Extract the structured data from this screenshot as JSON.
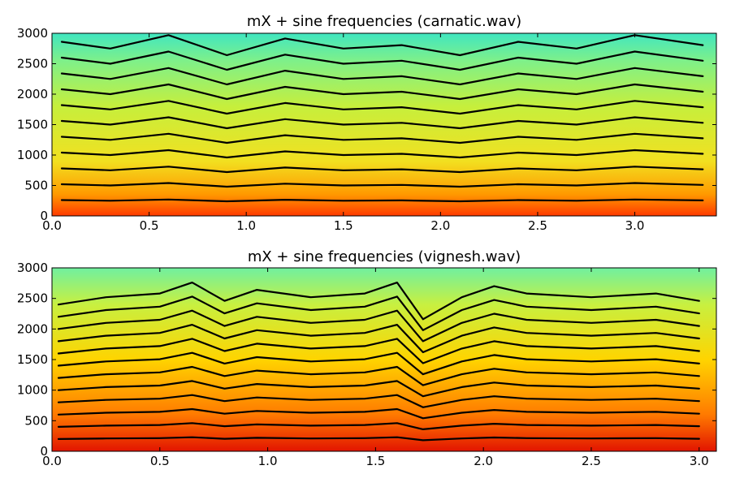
{
  "chart_data": [
    {
      "type": "heatmap",
      "title": "mX + sine frequencies (carnatic.wav)",
      "xlim": [
        0.0,
        3.42
      ],
      "ylim": [
        0,
        3000
      ],
      "x_ticks": [
        "0.0",
        "0.5",
        "1.0",
        "1.5",
        "2.0",
        "2.5",
        "3.0"
      ],
      "x_tick_values": [
        0.0,
        0.5,
        1.0,
        1.5,
        2.0,
        2.5,
        3.0
      ],
      "y_ticks": [
        "0",
        "500",
        "1000",
        "1500",
        "2000",
        "2500",
        "3000"
      ],
      "y_tick_values": [
        0,
        500,
        1000,
        1500,
        2000,
        2500,
        3000
      ],
      "colormap": "jet",
      "track_color": "#000000",
      "sine_frequencies": [
        {
          "x": [
            0.05,
            0.3,
            0.6,
            0.9,
            1.2,
            1.5,
            1.8,
            2.1,
            2.4,
            2.7,
            3.0,
            3.35
          ],
          "y": [
            260,
            250,
            270,
            240,
            265,
            250,
            255,
            240,
            260,
            250,
            270,
            255
          ]
        },
        {
          "x": [
            0.05,
            0.3,
            0.6,
            0.9,
            1.2,
            1.5,
            1.8,
            2.1,
            2.4,
            2.7,
            3.0,
            3.35
          ],
          "y": [
            520,
            500,
            540,
            480,
            530,
            500,
            510,
            480,
            520,
            500,
            540,
            510
          ]
        },
        {
          "x": [
            0.05,
            0.3,
            0.6,
            0.9,
            1.2,
            1.5,
            1.8,
            2.1,
            2.4,
            2.7,
            3.0,
            3.35
          ],
          "y": [
            780,
            750,
            810,
            720,
            795,
            750,
            765,
            720,
            780,
            750,
            810,
            765
          ]
        },
        {
          "x": [
            0.05,
            0.3,
            0.6,
            0.9,
            1.2,
            1.5,
            1.8,
            2.1,
            2.4,
            2.7,
            3.0,
            3.35
          ],
          "y": [
            1040,
            1000,
            1080,
            960,
            1060,
            1000,
            1020,
            960,
            1040,
            1000,
            1080,
            1020
          ]
        },
        {
          "x": [
            0.05,
            0.3,
            0.6,
            0.9,
            1.2,
            1.5,
            1.8,
            2.1,
            2.4,
            2.7,
            3.0,
            3.35
          ],
          "y": [
            1300,
            1250,
            1350,
            1200,
            1325,
            1250,
            1275,
            1200,
            1300,
            1250,
            1350,
            1275
          ]
        },
        {
          "x": [
            0.05,
            0.3,
            0.6,
            0.9,
            1.2,
            1.5,
            1.8,
            2.1,
            2.4,
            2.7,
            3.0,
            3.35
          ],
          "y": [
            1560,
            1500,
            1620,
            1440,
            1590,
            1500,
            1530,
            1440,
            1560,
            1500,
            1620,
            1530
          ]
        },
        {
          "x": [
            0.05,
            0.3,
            0.6,
            0.9,
            1.2,
            1.5,
            1.8,
            2.1,
            2.4,
            2.7,
            3.0,
            3.35
          ],
          "y": [
            1820,
            1750,
            1890,
            1680,
            1855,
            1750,
            1785,
            1680,
            1820,
            1750,
            1890,
            1785
          ]
        },
        {
          "x": [
            0.05,
            0.3,
            0.6,
            0.9,
            1.2,
            1.5,
            1.8,
            2.1,
            2.4,
            2.7,
            3.0,
            3.35
          ],
          "y": [
            2080,
            2000,
            2160,
            1920,
            2120,
            2000,
            2040,
            1920,
            2080,
            2000,
            2160,
            2040
          ]
        },
        {
          "x": [
            0.05,
            0.3,
            0.6,
            0.9,
            1.2,
            1.5,
            1.8,
            2.1,
            2.4,
            2.7,
            3.0,
            3.35
          ],
          "y": [
            2340,
            2250,
            2430,
            2160,
            2385,
            2250,
            2295,
            2160,
            2340,
            2250,
            2430,
            2295
          ]
        },
        {
          "x": [
            0.05,
            0.3,
            0.6,
            0.9,
            1.2,
            1.5,
            1.8,
            2.1,
            2.4,
            2.7,
            3.0,
            3.35
          ],
          "y": [
            2600,
            2500,
            2700,
            2400,
            2650,
            2500,
            2550,
            2400,
            2600,
            2500,
            2700,
            2550
          ]
        },
        {
          "x": [
            0.05,
            0.3,
            0.6,
            0.9,
            1.2,
            1.5,
            1.8,
            2.1,
            2.4,
            2.7,
            3.0,
            3.35
          ],
          "y": [
            2860,
            2750,
            2970,
            2640,
            2915,
            2750,
            2805,
            2640,
            2860,
            2750,
            2970,
            2805
          ]
        }
      ]
    },
    {
      "type": "heatmap",
      "title": "mX + sine frequencies (vignesh.wav)",
      "xlim": [
        0.0,
        3.08
      ],
      "ylim": [
        0,
        3000
      ],
      "x_ticks": [
        "0.0",
        "0.5",
        "1.0",
        "1.5",
        "2.0",
        "2.5",
        "3.0"
      ],
      "x_tick_values": [
        0.0,
        0.5,
        1.0,
        1.5,
        2.0,
        2.5,
        3.0
      ],
      "y_ticks": [
        "0",
        "500",
        "1000",
        "1500",
        "2000",
        "2500",
        "3000"
      ],
      "y_tick_values": [
        0,
        500,
        1000,
        1500,
        2000,
        2500,
        3000
      ],
      "colormap": "jet",
      "track_color": "#000000",
      "sine_frequencies": [
        {
          "x": [
            0.03,
            0.25,
            0.5,
            0.65,
            0.8,
            0.95,
            1.2,
            1.45,
            1.6,
            1.72,
            1.9,
            2.05,
            2.2,
            2.5,
            2.8,
            3.0
          ],
          "y": [
            200,
            210,
            215,
            230,
            205,
            220,
            210,
            215,
            230,
            180,
            210,
            225,
            215,
            210,
            215,
            205
          ]
        },
        {
          "x": [
            0.03,
            0.25,
            0.5,
            0.65,
            0.8,
            0.95,
            1.2,
            1.45,
            1.6,
            1.72,
            1.9,
            2.05,
            2.2,
            2.5,
            2.8,
            3.0
          ],
          "y": [
            400,
            420,
            430,
            460,
            410,
            440,
            420,
            430,
            460,
            360,
            420,
            450,
            430,
            420,
            430,
            410
          ]
        },
        {
          "x": [
            0.03,
            0.25,
            0.5,
            0.65,
            0.8,
            0.95,
            1.2,
            1.45,
            1.6,
            1.72,
            1.9,
            2.05,
            2.2,
            2.5,
            2.8,
            3.0
          ],
          "y": [
            600,
            630,
            645,
            690,
            615,
            660,
            630,
            645,
            690,
            540,
            630,
            675,
            645,
            630,
            645,
            615
          ]
        },
        {
          "x": [
            0.03,
            0.25,
            0.5,
            0.65,
            0.8,
            0.95,
            1.2,
            1.45,
            1.6,
            1.72,
            1.9,
            2.05,
            2.2,
            2.5,
            2.8,
            3.0
          ],
          "y": [
            800,
            840,
            860,
            920,
            820,
            880,
            840,
            860,
            920,
            720,
            840,
            900,
            860,
            840,
            860,
            820
          ]
        },
        {
          "x": [
            0.03,
            0.25,
            0.5,
            0.65,
            0.8,
            0.95,
            1.2,
            1.45,
            1.6,
            1.72,
            1.9,
            2.05,
            2.2,
            2.5,
            2.8,
            3.0
          ],
          "y": [
            1000,
            1050,
            1075,
            1150,
            1025,
            1100,
            1050,
            1075,
            1150,
            900,
            1050,
            1125,
            1075,
            1050,
            1075,
            1025
          ]
        },
        {
          "x": [
            0.03,
            0.25,
            0.5,
            0.65,
            0.8,
            0.95,
            1.2,
            1.45,
            1.6,
            1.72,
            1.9,
            2.05,
            2.2,
            2.5,
            2.8,
            3.0
          ],
          "y": [
            1200,
            1260,
            1290,
            1380,
            1230,
            1320,
            1260,
            1290,
            1380,
            1080,
            1260,
            1350,
            1290,
            1260,
            1290,
            1230
          ]
        },
        {
          "x": [
            0.03,
            0.25,
            0.5,
            0.65,
            0.8,
            0.95,
            1.2,
            1.45,
            1.6,
            1.72,
            1.9,
            2.05,
            2.2,
            2.5,
            2.8,
            3.0
          ],
          "y": [
            1400,
            1470,
            1505,
            1610,
            1435,
            1540,
            1470,
            1505,
            1610,
            1260,
            1470,
            1575,
            1505,
            1470,
            1505,
            1435
          ]
        },
        {
          "x": [
            0.03,
            0.25,
            0.5,
            0.65,
            0.8,
            0.95,
            1.2,
            1.45,
            1.6,
            1.72,
            1.9,
            2.05,
            2.2,
            2.5,
            2.8,
            3.0
          ],
          "y": [
            1600,
            1680,
            1720,
            1840,
            1640,
            1760,
            1680,
            1720,
            1840,
            1440,
            1680,
            1800,
            1720,
            1680,
            1720,
            1640
          ]
        },
        {
          "x": [
            0.03,
            0.25,
            0.5,
            0.65,
            0.8,
            0.95,
            1.2,
            1.45,
            1.6,
            1.72,
            1.9,
            2.05,
            2.2,
            2.5,
            2.8,
            3.0
          ],
          "y": [
            1800,
            1890,
            1935,
            2070,
            1845,
            1980,
            1890,
            1935,
            2070,
            1620,
            1890,
            2025,
            1935,
            1890,
            1935,
            1845
          ]
        },
        {
          "x": [
            0.03,
            0.25,
            0.5,
            0.65,
            0.8,
            0.95,
            1.2,
            1.45,
            1.6,
            1.72,
            1.9,
            2.05,
            2.2,
            2.5,
            2.8,
            3.0
          ],
          "y": [
            2000,
            2100,
            2150,
            2300,
            2050,
            2200,
            2100,
            2150,
            2300,
            1800,
            2100,
            2250,
            2150,
            2100,
            2150,
            2050
          ]
        },
        {
          "x": [
            0.03,
            0.25,
            0.5,
            0.65,
            0.8,
            0.95,
            1.2,
            1.45,
            1.6,
            1.72,
            1.9,
            2.05,
            2.2,
            2.5,
            2.8,
            3.0
          ],
          "y": [
            2200,
            2310,
            2365,
            2530,
            2255,
            2420,
            2310,
            2365,
            2530,
            1980,
            2310,
            2475,
            2365,
            2310,
            2365,
            2255
          ]
        },
        {
          "x": [
            0.03,
            0.25,
            0.5,
            0.65,
            0.8,
            0.95,
            1.2,
            1.45,
            1.6,
            1.72,
            1.9,
            2.05,
            2.2,
            2.5,
            2.8,
            3.0
          ],
          "y": [
            2400,
            2520,
            2580,
            2760,
            2460,
            2640,
            2520,
            2580,
            2760,
            2160,
            2520,
            2700,
            2580,
            2520,
            2580,
            2460
          ]
        }
      ]
    }
  ]
}
